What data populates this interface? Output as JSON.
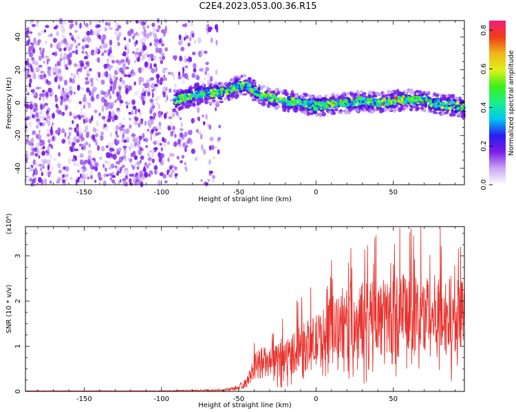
{
  "title": "C2E4.2023.053.00.36.R15",
  "chart_data": [
    {
      "type": "heatmap",
      "xlabel": "Height of straight line (km)",
      "ylabel": "Frequency (Hz)",
      "xlim": [
        -188,
        96
      ],
      "ylim": [
        -50,
        50
      ],
      "xticks": [
        -150,
        -100,
        -50,
        0,
        50
      ],
      "yticks": [
        -40,
        -20,
        0,
        20,
        40
      ],
      "colorbar": {
        "label": "Normalized spectral amplitude",
        "range": [
          0.0,
          0.85
        ],
        "ticks": [
          0.0,
          0.2,
          0.4,
          0.6,
          0.8
        ],
        "colors": [
          "#ffffff",
          "#c9a5f5",
          "#7a1ee8",
          "#2a1cf0",
          "#00c8f0",
          "#19f08a",
          "#3cf019",
          "#e0f019",
          "#f0b419",
          "#f03c19",
          "#f01e78"
        ]
      },
      "trace": {
        "x": [
          -92,
          -85,
          -78,
          -70,
          -62,
          -55,
          -50,
          -46,
          -42,
          -38,
          -34,
          -30,
          -25,
          -20,
          -10,
          0,
          10,
          20,
          30,
          40,
          50,
          60,
          70,
          80,
          90,
          96
        ],
        "y": [
          1,
          3,
          5,
          6,
          6,
          8,
          10,
          11,
          9,
          6,
          4,
          3,
          2,
          1,
          0,
          -2,
          -1,
          0,
          1,
          0,
          1,
          2,
          1,
          -1,
          -2,
          -3
        ]
      },
      "noise_region_x": [
        -188,
        -62
      ]
    },
    {
      "type": "line",
      "xlabel": "Height of straight line (km)",
      "ylabel": "SNR (10 * v/v)",
      "scale_label": "(x10⁴)",
      "xlim": [
        -188,
        96
      ],
      "ylim": [
        0,
        3.65
      ],
      "xticks": [
        -150,
        -100,
        -50,
        0,
        50
      ],
      "yticks": [
        0,
        1,
        2,
        3
      ],
      "series": [
        {
          "color": "#e8332e",
          "x": [
            -188,
            -100,
            -60,
            -50,
            -45,
            -40,
            -38,
            -35,
            -30,
            -20,
            -10,
            0,
            10,
            20,
            30,
            40,
            50,
            60,
            70,
            80,
            90,
            96
          ],
          "y": [
            0.01,
            0.01,
            0.03,
            0.08,
            0.2,
            0.5,
            0.6,
            0.65,
            0.6,
            0.75,
            0.95,
            1.1,
            1.3,
            1.45,
            1.55,
            1.6,
            1.65,
            1.7,
            1.7,
            1.65,
            1.6,
            1.6
          ]
        }
      ]
    }
  ]
}
